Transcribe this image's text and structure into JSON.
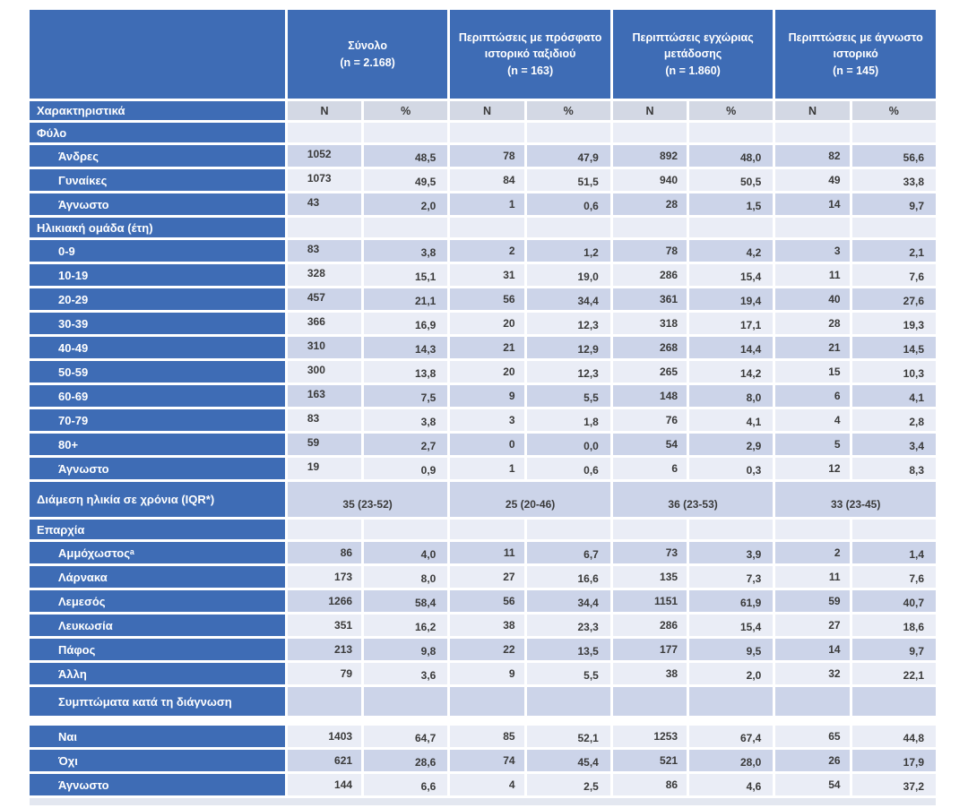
{
  "colors": {
    "header_blue": "#3E6CB5",
    "band_dark": "#CCD4E9",
    "band_light": "#EAEDF6",
    "subheader_bg": "#D3D8E4",
    "text": "#3A3A3A"
  },
  "header": {
    "groups": [
      {
        "label": "Σύνολο\n(n = 2.168)"
      },
      {
        "label": "Περιπτώσεις με πρόσφατο\nιστορικό ταξιδιού\n(n = 163)"
      },
      {
        "label": "Περιπτώσεις εγχώριας\nμετάδοσης\n(n = 1.860)"
      },
      {
        "label": "Περιπτώσεις με άγνωστο\nιστορικό\n(n = 145)"
      }
    ],
    "characteristics_label": "Χαρακτηριστικά",
    "n_label": "N",
    "pct_label": "%"
  },
  "rows": [
    {
      "kind": "section",
      "label": "Φύλο",
      "band": "light"
    },
    {
      "kind": "item",
      "label": "Άνδρες",
      "band": "dark",
      "n1_left": true,
      "cells": [
        "1052",
        "48,5",
        "78",
        "47,9",
        "892",
        "48,0",
        "82",
        "56,6"
      ]
    },
    {
      "kind": "item",
      "label": "Γυναίκες",
      "band": "light",
      "n1_left": true,
      "cells": [
        "1073",
        "49,5",
        "84",
        "51,5",
        "940",
        "50,5",
        "49",
        "33,8"
      ]
    },
    {
      "kind": "item",
      "label": "Άγνωστο",
      "band": "dark",
      "n1_left": true,
      "cells": [
        "43",
        "2,0",
        "1",
        "0,6",
        "28",
        "1,5",
        "14",
        "9,7"
      ]
    },
    {
      "kind": "section",
      "label": "Ηλικιακή ομάδα (έτη)",
      "band": "light"
    },
    {
      "kind": "item",
      "label": "0-9",
      "band": "dark",
      "n1_left": true,
      "cells": [
        "83",
        "3,8",
        "2",
        "1,2",
        "78",
        "4,2",
        "3",
        "2,1"
      ]
    },
    {
      "kind": "item",
      "label": "10-19",
      "band": "light",
      "n1_left": true,
      "cells": [
        "328",
        "15,1",
        "31",
        "19,0",
        "286",
        "15,4",
        "11",
        "7,6"
      ]
    },
    {
      "kind": "item",
      "label": "20-29",
      "band": "dark",
      "n1_left": true,
      "cells": [
        "457",
        "21,1",
        "56",
        "34,4",
        "361",
        "19,4",
        "40",
        "27,6"
      ]
    },
    {
      "kind": "item",
      "label": "30-39",
      "band": "light",
      "n1_left": true,
      "cells": [
        "366",
        "16,9",
        "20",
        "12,3",
        "318",
        "17,1",
        "28",
        "19,3"
      ]
    },
    {
      "kind": "item",
      "label": "40-49",
      "band": "dark",
      "n1_left": true,
      "cells": [
        "310",
        "14,3",
        "21",
        "12,9",
        "268",
        "14,4",
        "21",
        "14,5"
      ]
    },
    {
      "kind": "item",
      "label": "50-59",
      "band": "light",
      "n1_left": true,
      "cells": [
        "300",
        "13,8",
        "20",
        "12,3",
        "265",
        "14,2",
        "15",
        "10,3"
      ]
    },
    {
      "kind": "item",
      "label": "60-69",
      "band": "dark",
      "n1_left": true,
      "cells": [
        "163",
        "7,5",
        "9",
        "5,5",
        "148",
        "8,0",
        "6",
        "4,1"
      ]
    },
    {
      "kind": "item",
      "label": "70-79",
      "band": "light",
      "n1_left": true,
      "cells": [
        "83",
        "3,8",
        "3",
        "1,8",
        "76",
        "4,1",
        "4",
        "2,8"
      ]
    },
    {
      "kind": "item",
      "label": "80+",
      "band": "dark",
      "n1_left": true,
      "cells": [
        "59",
        "2,7",
        "0",
        "0,0",
        "54",
        "2,9",
        "5",
        "3,4"
      ]
    },
    {
      "kind": "item",
      "label": "Άγνωστο",
      "band": "light",
      "n1_left": true,
      "cells": [
        "19",
        "0,9",
        "1",
        "0,6",
        "6",
        "0,3",
        "12",
        "8,3"
      ]
    },
    {
      "kind": "median",
      "label": "Διάμεση ηλικία σε χρόνια (IQR*)",
      "band": "dark",
      "cells": [
        "35 (23-52)",
        "25 (20-46)",
        "36 (23-53)",
        "33 (23-45)"
      ]
    },
    {
      "kind": "section",
      "label": "Επαρχία",
      "band": "light"
    },
    {
      "kind": "item",
      "label": "Αμμόχωστοςᵃ",
      "band": "dark",
      "cells": [
        "86",
        "4,0",
        "11",
        "6,7",
        "73",
        "3,9",
        "2",
        "1,4"
      ]
    },
    {
      "kind": "item",
      "label": "Λάρνακα",
      "band": "light",
      "cells": [
        "173",
        "8,0",
        "27",
        "16,6",
        "135",
        "7,3",
        "11",
        "7,6"
      ]
    },
    {
      "kind": "item",
      "label": "Λεμεσός",
      "band": "dark",
      "cells": [
        "1266",
        "58,4",
        "56",
        "34,4",
        "1151",
        "61,9",
        "59",
        "40,7"
      ]
    },
    {
      "kind": "item",
      "label": "Λευκωσία",
      "band": "light",
      "cells": [
        "351",
        "16,2",
        "38",
        "23,3",
        "286",
        "15,4",
        "27",
        "18,6"
      ]
    },
    {
      "kind": "item",
      "label": "Πάφος",
      "band": "dark",
      "cells": [
        "213",
        "9,8",
        "22",
        "13,5",
        "177",
        "9,5",
        "14",
        "9,7"
      ]
    },
    {
      "kind": "item",
      "label": "Άλλη",
      "band": "light",
      "cells": [
        "79",
        "3,6",
        "9",
        "5,5",
        "38",
        "2,0",
        "32",
        "22,1"
      ]
    },
    {
      "kind": "section",
      "label": "Συμπτώματα κατά τη διάγνωση",
      "band": "dark",
      "indent": true,
      "tall": true
    },
    {
      "kind": "spacer"
    },
    {
      "kind": "item",
      "label": "Ναι",
      "band": "light",
      "cells": [
        "1403",
        "64,7",
        "85",
        "52,1",
        "1253",
        "67,4",
        "65",
        "44,8"
      ]
    },
    {
      "kind": "item",
      "label": "Όχι",
      "band": "dark",
      "cells": [
        "621",
        "28,6",
        "74",
        "45,4",
        "521",
        "28,0",
        "26",
        "17,9"
      ]
    },
    {
      "kind": "item",
      "label": "Άγνωστο",
      "band": "light",
      "cells": [
        "144",
        "6,6",
        "4",
        "2,5",
        "86",
        "4,6",
        "54",
        "37,2"
      ]
    },
    {
      "kind": "strip"
    }
  ]
}
